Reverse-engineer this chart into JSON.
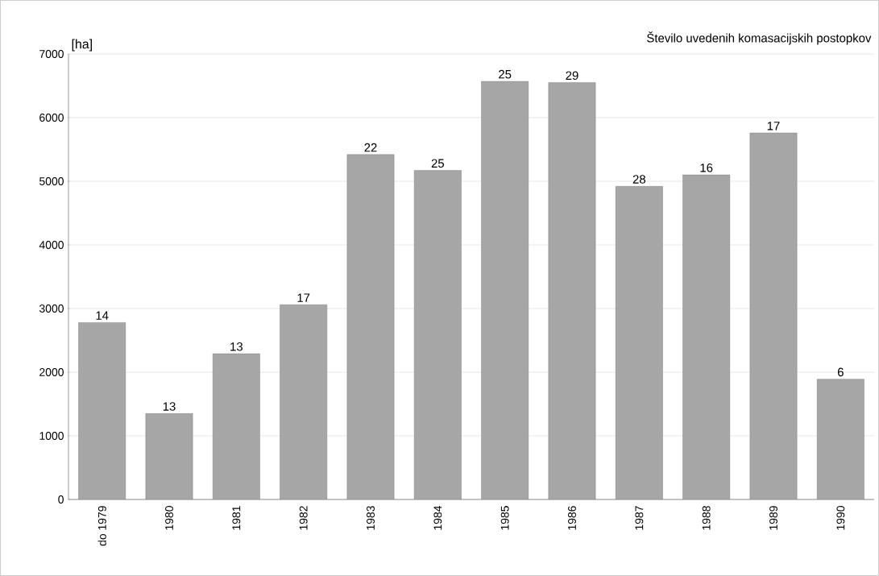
{
  "chart_data": {
    "type": "bar",
    "title": "Število uvedenih komasacijskih postopkov",
    "ylabel": "[ha]",
    "categories": [
      "do 1979",
      "1980",
      "1981",
      "1982",
      "1983",
      "1984",
      "1985",
      "1986",
      "1987",
      "1988",
      "1989",
      "1990"
    ],
    "values": [
      2780,
      1350,
      2290,
      3060,
      5420,
      5170,
      6570,
      6550,
      4920,
      5100,
      5760,
      1890
    ],
    "annotations": [
      {
        "text": "14",
        "x": "do 1979",
        "y": 2780
      },
      {
        "text": "13",
        "x": "1980",
        "y": 1350
      },
      {
        "text": "13",
        "x": "1981",
        "y": 2290
      },
      {
        "text": "17",
        "x": "1982",
        "y": 3060
      },
      {
        "text": "22",
        "x": "1983",
        "y": 5420
      },
      {
        "text": "25",
        "x": "1984",
        "y": 5170
      },
      {
        "text": "25",
        "x": "1985",
        "y": 6570
      },
      {
        "text": "29",
        "x": "1986",
        "y": 6550
      },
      {
        "text": "28",
        "x": "1987",
        "y": 4920
      },
      {
        "text": "16",
        "x": "1988",
        "y": 5100
      },
      {
        "text": "17",
        "x": "1989",
        "y": 5760
      },
      {
        "text": "6",
        "x": "1990",
        "y": 1890
      }
    ],
    "color": "#a6a6a6",
    "ylim": [
      0,
      7000
    ],
    "yticks": [
      0,
      1000,
      2000,
      3000,
      4000,
      5000,
      6000,
      7000
    ],
    "grid": "y"
  }
}
